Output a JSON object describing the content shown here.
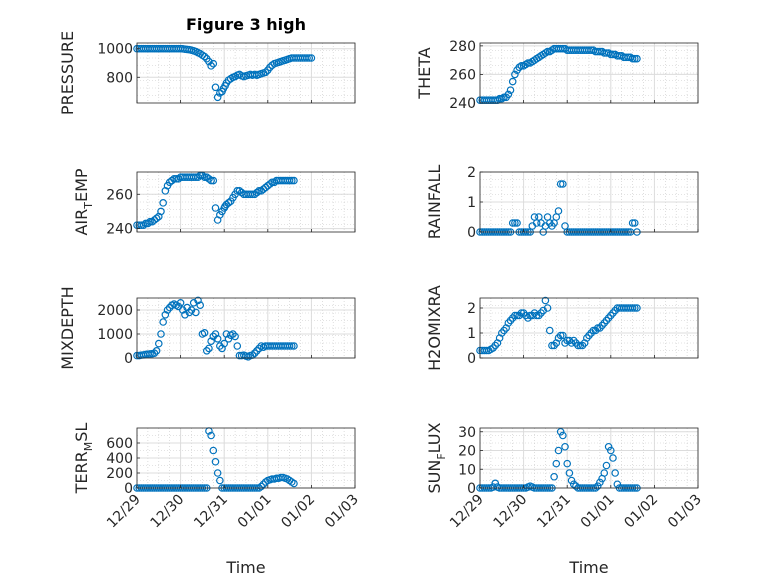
{
  "figure": {
    "title": "Figure 3 high",
    "x_tick_labels": [
      "12/29",
      "12/30",
      "12/31",
      "01/01",
      "01/02",
      "01/03"
    ],
    "xlabel": "Time",
    "marker_color": "#0072BD"
  },
  "chart_data": [
    {
      "type": "scatter",
      "ylabel": "PRESSURE",
      "yticks": [
        800,
        1000
      ],
      "ylim": [
        620,
        1040
      ],
      "x": [
        0,
        0.05,
        0.1,
        0.15,
        0.2,
        0.25,
        0.3,
        0.35,
        0.4,
        0.45,
        0.5,
        0.55,
        0.6,
        0.65,
        0.7,
        0.75,
        0.8,
        0.85,
        0.9,
        0.95,
        1.0,
        1.05,
        1.1,
        1.15,
        1.2,
        1.25,
        1.3,
        1.35,
        1.4,
        1.45,
        1.5,
        1.55,
        1.6,
        1.65,
        1.7,
        1.75,
        1.8,
        1.85,
        1.9,
        1.95,
        1.98,
        2.02,
        2.05,
        2.1,
        2.15,
        2.2,
        2.25,
        2.3,
        2.35,
        2.4,
        2.45,
        2.5,
        2.55,
        2.6,
        2.65,
        2.7,
        2.75,
        2.8,
        2.85,
        2.9,
        2.95,
        3.0,
        3.05,
        3.1,
        3.15,
        3.2,
        3.25,
        3.3,
        3.35,
        3.4,
        3.45,
        3.5,
        3.55,
        3.6,
        3.65,
        3.7,
        3.75,
        3.8,
        3.85,
        3.9,
        3.95,
        4.0
      ],
      "y": [
        1000,
        1000,
        1000,
        1000,
        1000,
        1000,
        1000,
        1000,
        1000,
        1000,
        1000,
        1000,
        1000,
        1000,
        1000,
        1000,
        1000,
        1000,
        1000,
        1000,
        1000,
        999,
        997,
        995,
        993,
        990,
        985,
        980,
        972,
        965,
        955,
        945,
        930,
        910,
        880,
        895,
        730,
        660,
        690,
        700,
        720,
        740,
        760,
        780,
        790,
        800,
        805,
        815,
        820,
        810,
        805,
        810,
        815,
        820,
        815,
        820,
        815,
        820,
        825,
        830,
        835,
        850,
        870,
        885,
        895,
        900,
        905,
        910,
        915,
        920,
        925,
        930,
        935,
        935,
        935,
        935,
        935,
        935,
        935,
        935,
        935,
        935
      ],
      "markers": "open-circle"
    },
    {
      "type": "scatter",
      "ylabel": "THETA",
      "yticks": [
        240,
        260,
        280
      ],
      "ylim": [
        240,
        282
      ],
      "x": [
        0,
        0.05,
        0.1,
        0.15,
        0.2,
        0.25,
        0.3,
        0.35,
        0.4,
        0.45,
        0.5,
        0.55,
        0.6,
        0.65,
        0.7,
        0.75,
        0.8,
        0.85,
        0.9,
        0.95,
        1.0,
        1.05,
        1.1,
        1.15,
        1.2,
        1.25,
        1.3,
        1.35,
        1.4,
        1.45,
        1.5,
        1.55,
        1.6,
        1.65,
        1.7,
        1.75,
        1.8,
        1.85,
        1.9,
        1.95,
        2.0,
        2.05,
        2.1,
        2.15,
        2.2,
        2.25,
        2.3,
        2.35,
        2.4,
        2.45,
        2.5,
        2.55,
        2.6,
        2.65,
        2.7,
        2.75,
        2.8,
        2.85,
        2.9,
        2.95,
        3.0,
        3.05,
        3.1,
        3.15,
        3.2,
        3.25,
        3.3,
        3.35,
        3.4,
        3.45,
        3.5,
        3.55,
        3.6
      ],
      "y": [
        242,
        242,
        242,
        242,
        242,
        242,
        242,
        242,
        242,
        243,
        243,
        244,
        244,
        246,
        249,
        255,
        260,
        263,
        265,
        266,
        266,
        267,
        268,
        268,
        269,
        270,
        271,
        272,
        273,
        274,
        275,
        276,
        276,
        277,
        278,
        278,
        278,
        278,
        278,
        278,
        277,
        277,
        277,
        277,
        277,
        277,
        277,
        277,
        277,
        277,
        277,
        277,
        277,
        276,
        276,
        276,
        276,
        275,
        275,
        275,
        274,
        274,
        274,
        273,
        273,
        273,
        272,
        272,
        272,
        272,
        271,
        271,
        271
      ],
      "markers": "open-circle"
    },
    {
      "type": "scatter",
      "ylabel": "AIR",
      "ylabel_sub": "T",
      "ylabel_tail": "EMP",
      "yticks": [
        240,
        260
      ],
      "ylim": [
        238,
        273
      ],
      "x": [
        0,
        0.05,
        0.1,
        0.15,
        0.2,
        0.25,
        0.3,
        0.35,
        0.4,
        0.45,
        0.5,
        0.55,
        0.6,
        0.65,
        0.7,
        0.75,
        0.8,
        0.85,
        0.9,
        0.95,
        1.0,
        1.05,
        1.1,
        1.15,
        1.2,
        1.25,
        1.3,
        1.35,
        1.4,
        1.45,
        1.5,
        1.55,
        1.6,
        1.65,
        1.7,
        1.75,
        1.8,
        1.85,
        1.9,
        1.95,
        2.0,
        2.02,
        2.05,
        2.1,
        2.15,
        2.2,
        2.25,
        2.3,
        2.35,
        2.4,
        2.45,
        2.5,
        2.55,
        2.6,
        2.65,
        2.7,
        2.75,
        2.8,
        2.85,
        2.9,
        2.95,
        3.0,
        3.05,
        3.1,
        3.15,
        3.2,
        3.25,
        3.3,
        3.35,
        3.4,
        3.45,
        3.5,
        3.55,
        3.6
      ],
      "y": [
        242,
        242,
        242,
        242,
        243,
        243,
        244,
        244,
        245,
        246,
        247,
        250,
        255,
        262,
        265,
        267,
        268,
        269,
        269,
        269,
        270,
        270,
        270,
        270,
        270,
        270,
        270,
        270,
        270,
        271,
        271,
        270,
        270,
        269,
        268,
        268,
        252,
        245,
        248,
        250,
        252,
        253,
        254,
        255,
        256,
        258,
        260,
        262,
        262,
        261,
        260,
        260,
        260,
        260,
        260,
        260,
        261,
        262,
        262,
        263,
        264,
        265,
        266,
        267,
        267,
        268,
        268,
        268,
        268,
        268,
        268,
        268,
        268,
        268
      ],
      "markers": "open-circle"
    },
    {
      "type": "scatter",
      "ylabel": "RAINFALL",
      "yticks": [
        0,
        1,
        2
      ],
      "ylim": [
        0,
        2
      ],
      "x": [
        0,
        0.05,
        0.1,
        0.15,
        0.2,
        0.25,
        0.3,
        0.35,
        0.4,
        0.45,
        0.5,
        0.55,
        0.6,
        0.65,
        0.7,
        0.75,
        0.8,
        0.85,
        0.9,
        0.95,
        1.0,
        1.05,
        1.1,
        1.15,
        1.2,
        1.25,
        1.3,
        1.35,
        1.4,
        1.45,
        1.5,
        1.55,
        1.6,
        1.65,
        1.7,
        1.75,
        1.8,
        1.85,
        1.9,
        1.95,
        2.0,
        2.05,
        2.1,
        2.15,
        2.2,
        2.25,
        2.3,
        2.35,
        2.4,
        2.45,
        2.5,
        2.55,
        2.6,
        2.65,
        2.7,
        2.75,
        2.8,
        2.85,
        2.9,
        2.95,
        3.0,
        3.05,
        3.1,
        3.15,
        3.2,
        3.25,
        3.3,
        3.35,
        3.4,
        3.45,
        3.5,
        3.55,
        3.6
      ],
      "y": [
        0,
        0,
        0,
        0,
        0,
        0,
        0,
        0,
        0,
        0,
        0,
        0,
        0,
        0,
        0,
        0.3,
        0.3,
        0.3,
        0,
        0,
        0,
        0,
        0,
        0,
        0.2,
        0.5,
        0.3,
        0.5,
        0.3,
        0,
        0.2,
        0.5,
        0.3,
        0.2,
        0.3,
        0.5,
        0.7,
        1.6,
        1.6,
        0.2,
        0,
        0,
        0,
        0,
        0,
        0,
        0,
        0,
        0,
        0,
        0,
        0,
        0,
        0,
        0,
        0,
        0,
        0,
        0,
        0,
        0,
        0,
        0,
        0,
        0,
        0,
        0,
        0,
        0,
        0,
        0.3,
        0.3,
        0
      ],
      "markers": "open-circle"
    },
    {
      "type": "scatter",
      "ylabel": "MIXDEPTH",
      "yticks": [
        0,
        1000,
        2000
      ],
      "ylim": [
        0,
        2500
      ],
      "x": [
        0,
        0.05,
        0.1,
        0.15,
        0.2,
        0.25,
        0.3,
        0.35,
        0.4,
        0.45,
        0.5,
        0.55,
        0.6,
        0.65,
        0.7,
        0.75,
        0.8,
        0.85,
        0.9,
        0.95,
        1.0,
        1.05,
        1.1,
        1.15,
        1.2,
        1.25,
        1.3,
        1.35,
        1.4,
        1.45,
        1.5,
        1.55,
        1.6,
        1.65,
        1.7,
        1.75,
        1.8,
        1.85,
        1.9,
        1.95,
        2.0,
        2.05,
        2.1,
        2.15,
        2.2,
        2.25,
        2.3,
        2.35,
        2.4,
        2.45,
        2.5,
        2.55,
        2.6,
        2.65,
        2.7,
        2.75,
        2.8,
        2.85,
        2.9,
        2.95,
        3.0,
        3.05,
        3.1,
        3.15,
        3.2,
        3.25,
        3.3,
        3.35,
        3.4,
        3.45,
        3.5,
        3.55,
        3.6
      ],
      "y": [
        100,
        100,
        120,
        130,
        150,
        160,
        170,
        180,
        200,
        300,
        600,
        1000,
        1500,
        1800,
        2000,
        2100,
        2200,
        2250,
        2200,
        2150,
        2300,
        2000,
        1800,
        2100,
        1900,
        2000,
        2300,
        1900,
        2400,
        2200,
        1000,
        1050,
        300,
        400,
        700,
        900,
        1000,
        800,
        500,
        400,
        600,
        1000,
        800,
        950,
        1000,
        900,
        500,
        100,
        100,
        120,
        80,
        50,
        100,
        120,
        200,
        300,
        400,
        500,
        450,
        500,
        500,
        500,
        500,
        500,
        500,
        500,
        500,
        500,
        500,
        500,
        500,
        500,
        500
      ],
      "markers": "open-circle"
    },
    {
      "type": "scatter",
      "ylabel": "H2OMIXRA",
      "yticks": [
        0,
        1,
        2
      ],
      "ylim": [
        0,
        2.4
      ],
      "x": [
        0,
        0.05,
        0.1,
        0.15,
        0.2,
        0.25,
        0.3,
        0.35,
        0.4,
        0.45,
        0.5,
        0.55,
        0.6,
        0.65,
        0.7,
        0.75,
        0.8,
        0.85,
        0.9,
        0.95,
        1.0,
        1.05,
        1.1,
        1.15,
        1.2,
        1.25,
        1.3,
        1.35,
        1.4,
        1.45,
        1.5,
        1.55,
        1.6,
        1.65,
        1.7,
        1.75,
        1.8,
        1.85,
        1.9,
        1.95,
        2.0,
        2.05,
        2.1,
        2.15,
        2.2,
        2.25,
        2.3,
        2.35,
        2.4,
        2.45,
        2.5,
        2.55,
        2.6,
        2.65,
        2.7,
        2.75,
        2.8,
        2.85,
        2.9,
        2.95,
        3.0,
        3.05,
        3.1,
        3.15,
        3.2,
        3.25,
        3.3,
        3.35,
        3.4,
        3.45,
        3.5,
        3.55,
        3.6
      ],
      "y": [
        0.3,
        0.3,
        0.3,
        0.3,
        0.3,
        0.35,
        0.4,
        0.5,
        0.6,
        0.8,
        1.0,
        1.1,
        1.2,
        1.4,
        1.5,
        1.6,
        1.7,
        1.7,
        1.7,
        1.8,
        1.8,
        1.7,
        1.6,
        1.7,
        1.7,
        1.8,
        1.7,
        1.7,
        1.8,
        1.9,
        2.3,
        2.0,
        1.1,
        0.5,
        0.5,
        0.6,
        0.8,
        0.9,
        0.9,
        0.6,
        0.7,
        0.7,
        0.6,
        0.7,
        0.6,
        0.5,
        0.5,
        0.5,
        0.6,
        0.8,
        0.9,
        1.0,
        1.1,
        1.1,
        1.2,
        1.2,
        1.3,
        1.4,
        1.5,
        1.6,
        1.7,
        1.8,
        1.9,
        2.0,
        2.0,
        2.0,
        2.0,
        2.0,
        2.0,
        2.0,
        2.0,
        2.0,
        2.0
      ],
      "markers": "open-circle"
    },
    {
      "type": "scatter",
      "ylabel": "TERR",
      "ylabel_sub": "M",
      "ylabel_tail": "SL",
      "yticks": [
        0,
        200,
        400,
        600
      ],
      "ylim": [
        0,
        800
      ],
      "x": [
        0,
        0.05,
        0.1,
        0.15,
        0.2,
        0.25,
        0.3,
        0.35,
        0.4,
        0.45,
        0.5,
        0.55,
        0.6,
        0.65,
        0.7,
        0.75,
        0.8,
        0.85,
        0.9,
        0.95,
        1.0,
        1.05,
        1.1,
        1.15,
        1.2,
        1.25,
        1.3,
        1.35,
        1.4,
        1.45,
        1.5,
        1.55,
        1.6,
        1.65,
        1.7,
        1.75,
        1.8,
        1.85,
        1.9,
        1.95,
        2.0,
        2.05,
        2.1,
        2.15,
        2.2,
        2.25,
        2.3,
        2.35,
        2.4,
        2.45,
        2.5,
        2.55,
        2.6,
        2.65,
        2.7,
        2.75,
        2.8,
        2.85,
        2.9,
        2.95,
        3.0,
        3.05,
        3.1,
        3.15,
        3.2,
        3.25,
        3.3,
        3.35,
        3.4,
        3.45,
        3.5,
        3.55,
        3.6
      ],
      "y": [
        0,
        0,
        0,
        0,
        0,
        0,
        0,
        0,
        0,
        0,
        0,
        0,
        0,
        0,
        0,
        0,
        0,
        0,
        0,
        0,
        0,
        0,
        0,
        0,
        0,
        0,
        0,
        0,
        0,
        0,
        0,
        0,
        0,
        760,
        700,
        500,
        350,
        200,
        100,
        0,
        0,
        0,
        0,
        0,
        0,
        0,
        0,
        0,
        0,
        0,
        0,
        0,
        0,
        0,
        0,
        0,
        0,
        20,
        50,
        80,
        100,
        110,
        120,
        120,
        130,
        130,
        140,
        140,
        130,
        120,
        100,
        80,
        60
      ],
      "markers": "open-circle"
    },
    {
      "type": "scatter",
      "ylabel": "SUN",
      "ylabel_sub": "F",
      "ylabel_tail": "LUX",
      "yticks": [
        0,
        10,
        20,
        30
      ],
      "ylim": [
        0,
        32
      ],
      "x": [
        0,
        0.05,
        0.1,
        0.15,
        0.2,
        0.25,
        0.3,
        0.35,
        0.4,
        0.45,
        0.5,
        0.55,
        0.6,
        0.65,
        0.7,
        0.75,
        0.8,
        0.85,
        0.9,
        0.95,
        1.0,
        1.05,
        1.1,
        1.15,
        1.2,
        1.25,
        1.3,
        1.35,
        1.4,
        1.45,
        1.5,
        1.55,
        1.6,
        1.65,
        1.7,
        1.75,
        1.8,
        1.85,
        1.9,
        1.95,
        2.0,
        2.05,
        2.1,
        2.15,
        2.2,
        2.25,
        2.3,
        2.35,
        2.4,
        2.45,
        2.5,
        2.55,
        2.6,
        2.65,
        2.7,
        2.75,
        2.8,
        2.85,
        2.9,
        2.95,
        3.0,
        3.05,
        3.1,
        3.15,
        3.2,
        3.25,
        3.3,
        3.35,
        3.4,
        3.45,
        3.5,
        3.55,
        3.6
      ],
      "y": [
        0,
        0,
        0,
        0,
        0,
        0,
        0.5,
        2.5,
        0.5,
        0,
        0,
        0,
        0,
        0,
        0,
        0,
        0,
        0,
        0,
        0,
        0,
        0,
        0.5,
        1,
        0.5,
        0,
        0,
        0,
        0,
        0,
        0,
        0,
        0,
        0,
        6,
        13,
        20,
        30,
        28,
        22,
        13,
        8,
        4,
        2,
        1,
        0,
        0,
        0,
        0,
        0,
        0,
        0,
        0,
        0,
        1,
        3,
        5,
        8,
        12,
        22,
        20,
        16,
        8,
        2,
        0,
        0,
        0,
        0,
        0,
        0,
        0,
        0,
        0
      ],
      "markers": "open-circle"
    }
  ]
}
